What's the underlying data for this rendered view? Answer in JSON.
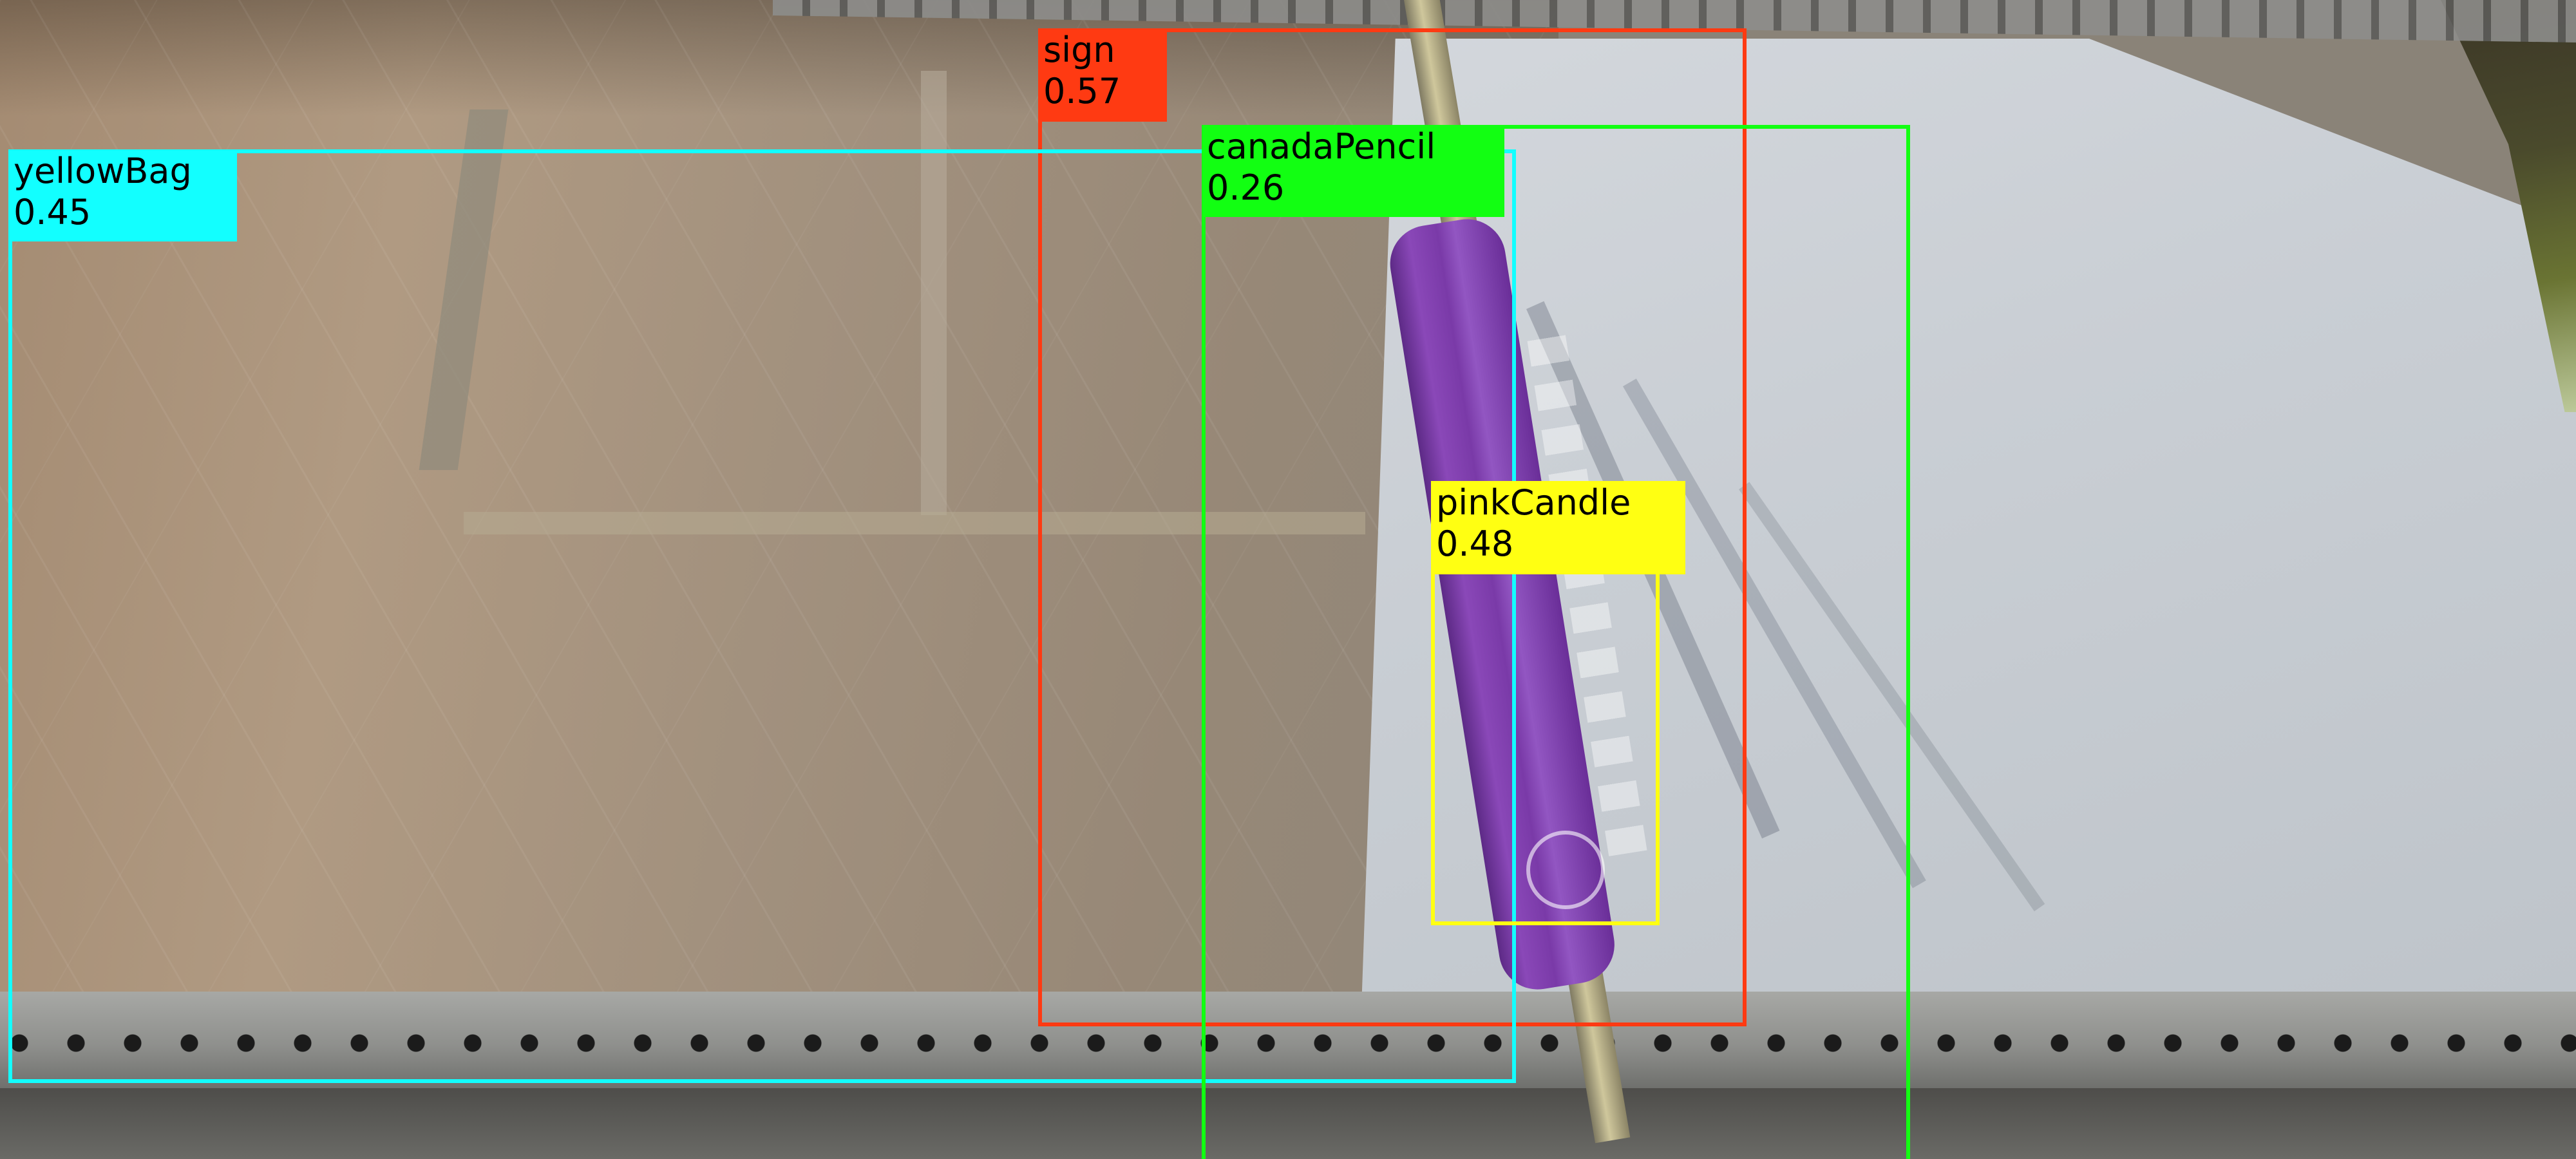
{
  "detections": [
    {
      "label": "sign",
      "score": "0.57",
      "color": "#ff3a12"
    },
    {
      "label": "canadaPencil",
      "score": "0.26",
      "color": "#12ff12"
    },
    {
      "label": "yellowBag",
      "score": "0.45",
      "color": "#12ffff"
    },
    {
      "label": "pinkCandle",
      "score": "0.48",
      "color": "#ffff12"
    }
  ]
}
